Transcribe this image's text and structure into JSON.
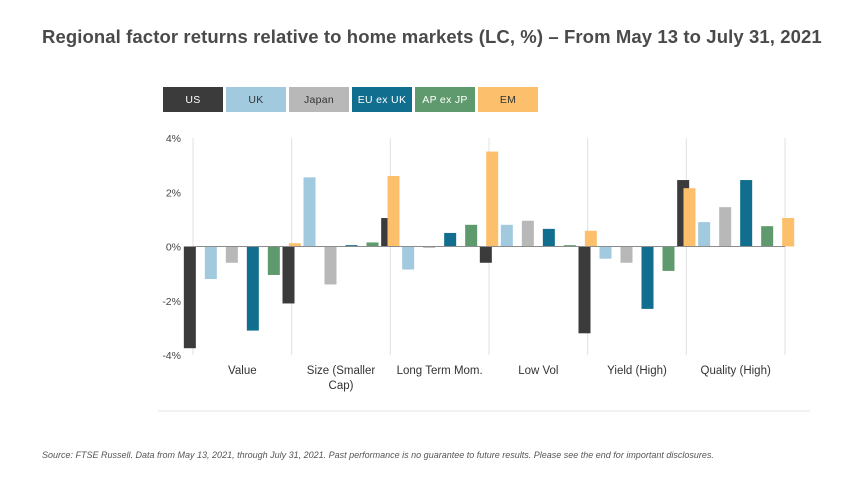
{
  "title": "Regional factor returns relative to home markets (LC, %) – From May 13 to July 31, 2021",
  "source": "Source: FTSE Russell. Data from May 13, 2021, through July 31, 2021. Past performance is no guarantee to future results. Please see the end for important disclosures.",
  "chart_data": {
    "type": "bar",
    "categories": [
      "Value",
      "Size (Smaller Cap)",
      "Long Term Mom.",
      "Low Vol",
      "Yield (High)",
      "Quality (High)"
    ],
    "category_lines": [
      [
        "Value"
      ],
      [
        "Size (Smaller",
        "Cap)"
      ],
      [
        "Long Term Mom."
      ],
      [
        "Low Vol"
      ],
      [
        "Yield (High)"
      ],
      [
        "Quality (High)"
      ]
    ],
    "ylim": [
      -4,
      4
    ],
    "yticks": [
      4,
      2,
      0,
      -2,
      -4
    ],
    "ytick_labels": [
      "4%",
      "2%",
      "0%",
      "-2%",
      "-4%"
    ],
    "legend_position": "top",
    "gridlines": "vertical category separators",
    "series": [
      {
        "name": "US",
        "color": "#3b3b3b",
        "values": [
          -3.75,
          -2.1,
          1.05,
          -0.6,
          -3.2,
          2.45
        ]
      },
      {
        "name": "UK",
        "color": "#a2cadf",
        "values": [
          -1.2,
          2.55,
          -0.85,
          0.8,
          -0.45,
          0.9
        ]
      },
      {
        "name": "Japan",
        "color": "#b8b8b8",
        "values": [
          -0.6,
          -1.4,
          -0.05,
          0.95,
          -0.6,
          1.45
        ]
      },
      {
        "name": "EU ex UK",
        "color": "#126e8e",
        "values": [
          -3.1,
          0.05,
          0.5,
          0.65,
          -2.3,
          2.45
        ]
      },
      {
        "name": "AP ex JP",
        "color": "#5f9a6e",
        "values": [
          -1.05,
          0.15,
          0.8,
          0.05,
          -0.9,
          0.75
        ]
      },
      {
        "name": "EM",
        "color": "#fcc06c",
        "values": [
          0.12,
          2.6,
          3.5,
          0.58,
          2.15,
          1.05
        ]
      }
    ]
  }
}
